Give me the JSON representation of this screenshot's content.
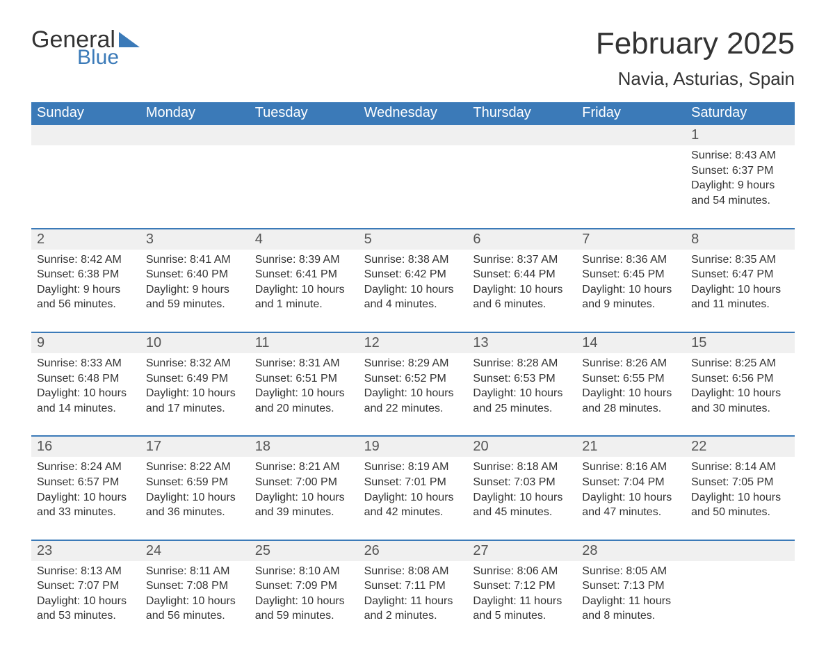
{
  "logo": {
    "word1": "General",
    "word2": "Blue",
    "shape_color": "#3b7ab8"
  },
  "title": "February 2025",
  "subtitle": "Navia, Asturias, Spain",
  "colors": {
    "header_bg": "#3b7ab8",
    "header_text": "#ffffff",
    "daynum_bg": "#f0f0f0",
    "daynum_text": "#555555",
    "body_text": "#333333",
    "week_border": "#3b7ab8",
    "background": "#ffffff"
  },
  "fonts": {
    "title_size": 44,
    "subtitle_size": 26,
    "weekday_size": 20,
    "daynum_size": 20,
    "body_size": 16
  },
  "weekdays": [
    "Sunday",
    "Monday",
    "Tuesday",
    "Wednesday",
    "Thursday",
    "Friday",
    "Saturday"
  ],
  "weeks": [
    [
      {
        "n": "",
        "sunrise": "",
        "sunset": "",
        "daylight": ""
      },
      {
        "n": "",
        "sunrise": "",
        "sunset": "",
        "daylight": ""
      },
      {
        "n": "",
        "sunrise": "",
        "sunset": "",
        "daylight": ""
      },
      {
        "n": "",
        "sunrise": "",
        "sunset": "",
        "daylight": ""
      },
      {
        "n": "",
        "sunrise": "",
        "sunset": "",
        "daylight": ""
      },
      {
        "n": "",
        "sunrise": "",
        "sunset": "",
        "daylight": ""
      },
      {
        "n": "1",
        "sunrise": "Sunrise: 8:43 AM",
        "sunset": "Sunset: 6:37 PM",
        "daylight": "Daylight: 9 hours and 54 minutes."
      }
    ],
    [
      {
        "n": "2",
        "sunrise": "Sunrise: 8:42 AM",
        "sunset": "Sunset: 6:38 PM",
        "daylight": "Daylight: 9 hours and 56 minutes."
      },
      {
        "n": "3",
        "sunrise": "Sunrise: 8:41 AM",
        "sunset": "Sunset: 6:40 PM",
        "daylight": "Daylight: 9 hours and 59 minutes."
      },
      {
        "n": "4",
        "sunrise": "Sunrise: 8:39 AM",
        "sunset": "Sunset: 6:41 PM",
        "daylight": "Daylight: 10 hours and 1 minute."
      },
      {
        "n": "5",
        "sunrise": "Sunrise: 8:38 AM",
        "sunset": "Sunset: 6:42 PM",
        "daylight": "Daylight: 10 hours and 4 minutes."
      },
      {
        "n": "6",
        "sunrise": "Sunrise: 8:37 AM",
        "sunset": "Sunset: 6:44 PM",
        "daylight": "Daylight: 10 hours and 6 minutes."
      },
      {
        "n": "7",
        "sunrise": "Sunrise: 8:36 AM",
        "sunset": "Sunset: 6:45 PM",
        "daylight": "Daylight: 10 hours and 9 minutes."
      },
      {
        "n": "8",
        "sunrise": "Sunrise: 8:35 AM",
        "sunset": "Sunset: 6:47 PM",
        "daylight": "Daylight: 10 hours and 11 minutes."
      }
    ],
    [
      {
        "n": "9",
        "sunrise": "Sunrise: 8:33 AM",
        "sunset": "Sunset: 6:48 PM",
        "daylight": "Daylight: 10 hours and 14 minutes."
      },
      {
        "n": "10",
        "sunrise": "Sunrise: 8:32 AM",
        "sunset": "Sunset: 6:49 PM",
        "daylight": "Daylight: 10 hours and 17 minutes."
      },
      {
        "n": "11",
        "sunrise": "Sunrise: 8:31 AM",
        "sunset": "Sunset: 6:51 PM",
        "daylight": "Daylight: 10 hours and 20 minutes."
      },
      {
        "n": "12",
        "sunrise": "Sunrise: 8:29 AM",
        "sunset": "Sunset: 6:52 PM",
        "daylight": "Daylight: 10 hours and 22 minutes."
      },
      {
        "n": "13",
        "sunrise": "Sunrise: 8:28 AM",
        "sunset": "Sunset: 6:53 PM",
        "daylight": "Daylight: 10 hours and 25 minutes."
      },
      {
        "n": "14",
        "sunrise": "Sunrise: 8:26 AM",
        "sunset": "Sunset: 6:55 PM",
        "daylight": "Daylight: 10 hours and 28 minutes."
      },
      {
        "n": "15",
        "sunrise": "Sunrise: 8:25 AM",
        "sunset": "Sunset: 6:56 PM",
        "daylight": "Daylight: 10 hours and 30 minutes."
      }
    ],
    [
      {
        "n": "16",
        "sunrise": "Sunrise: 8:24 AM",
        "sunset": "Sunset: 6:57 PM",
        "daylight": "Daylight: 10 hours and 33 minutes."
      },
      {
        "n": "17",
        "sunrise": "Sunrise: 8:22 AM",
        "sunset": "Sunset: 6:59 PM",
        "daylight": "Daylight: 10 hours and 36 minutes."
      },
      {
        "n": "18",
        "sunrise": "Sunrise: 8:21 AM",
        "sunset": "Sunset: 7:00 PM",
        "daylight": "Daylight: 10 hours and 39 minutes."
      },
      {
        "n": "19",
        "sunrise": "Sunrise: 8:19 AM",
        "sunset": "Sunset: 7:01 PM",
        "daylight": "Daylight: 10 hours and 42 minutes."
      },
      {
        "n": "20",
        "sunrise": "Sunrise: 8:18 AM",
        "sunset": "Sunset: 7:03 PM",
        "daylight": "Daylight: 10 hours and 45 minutes."
      },
      {
        "n": "21",
        "sunrise": "Sunrise: 8:16 AM",
        "sunset": "Sunset: 7:04 PM",
        "daylight": "Daylight: 10 hours and 47 minutes."
      },
      {
        "n": "22",
        "sunrise": "Sunrise: 8:14 AM",
        "sunset": "Sunset: 7:05 PM",
        "daylight": "Daylight: 10 hours and 50 minutes."
      }
    ],
    [
      {
        "n": "23",
        "sunrise": "Sunrise: 8:13 AM",
        "sunset": "Sunset: 7:07 PM",
        "daylight": "Daylight: 10 hours and 53 minutes."
      },
      {
        "n": "24",
        "sunrise": "Sunrise: 8:11 AM",
        "sunset": "Sunset: 7:08 PM",
        "daylight": "Daylight: 10 hours and 56 minutes."
      },
      {
        "n": "25",
        "sunrise": "Sunrise: 8:10 AM",
        "sunset": "Sunset: 7:09 PM",
        "daylight": "Daylight: 10 hours and 59 minutes."
      },
      {
        "n": "26",
        "sunrise": "Sunrise: 8:08 AM",
        "sunset": "Sunset: 7:11 PM",
        "daylight": "Daylight: 11 hours and 2 minutes."
      },
      {
        "n": "27",
        "sunrise": "Sunrise: 8:06 AM",
        "sunset": "Sunset: 7:12 PM",
        "daylight": "Daylight: 11 hours and 5 minutes."
      },
      {
        "n": "28",
        "sunrise": "Sunrise: 8:05 AM",
        "sunset": "Sunset: 7:13 PM",
        "daylight": "Daylight: 11 hours and 8 minutes."
      },
      {
        "n": "",
        "sunrise": "",
        "sunset": "",
        "daylight": ""
      }
    ]
  ]
}
